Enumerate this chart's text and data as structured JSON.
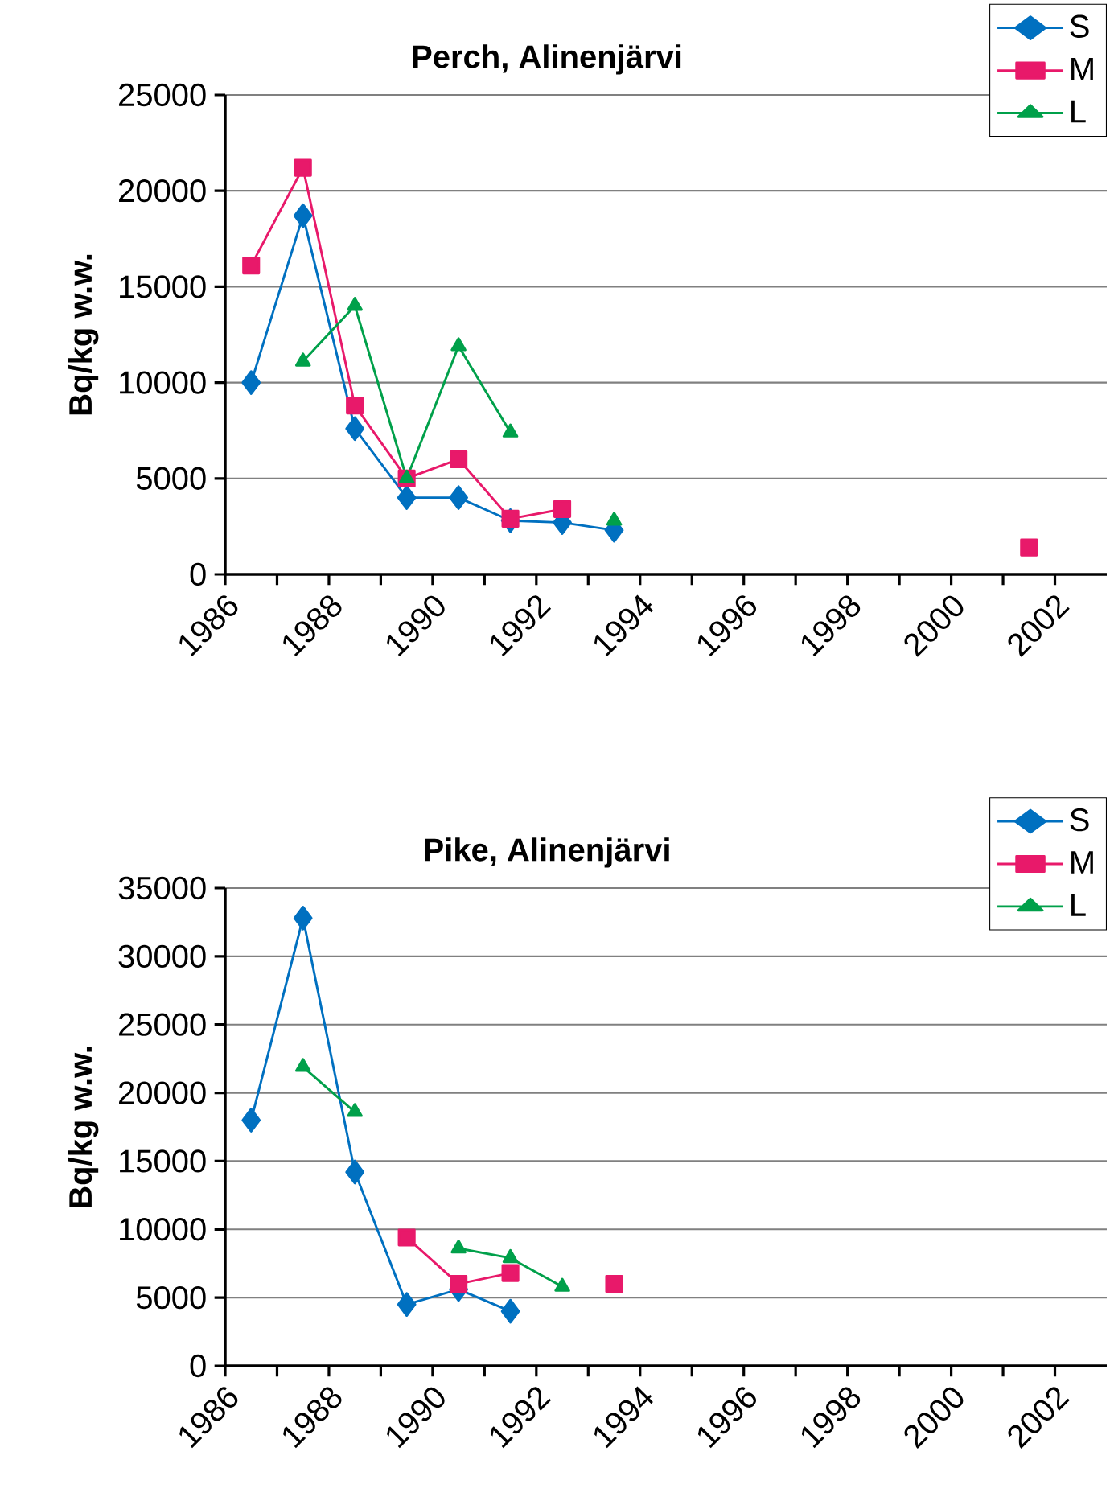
{
  "chart_data": [
    {
      "type": "line",
      "title": "Perch, Alinenjärvi",
      "ylabel": "Bq/kg w.w.",
      "x": [
        1986.5,
        1987.5,
        1988.5,
        1989.5,
        1990.5,
        1991.5,
        1992.5,
        1993.5,
        2001.5
      ],
      "series": [
        {
          "name": "S",
          "color": "#0070c0",
          "marker": "diamond",
          "values": [
            10000,
            18700,
            7600,
            4000,
            4000,
            2800,
            2700,
            2300,
            null
          ]
        },
        {
          "name": "M",
          "color": "#e8196a",
          "marker": "square",
          "values": [
            16100,
            21200,
            8800,
            5000,
            6000,
            2900,
            3400,
            null,
            1400
          ]
        },
        {
          "name": "L",
          "color": "#00a04a",
          "marker": "triangle",
          "values": [
            null,
            11100,
            14000,
            5000,
            11900,
            7400,
            null,
            2800,
            null
          ]
        }
      ],
      "xlim": [
        1986,
        2003
      ],
      "ylim": [
        0,
        25000
      ],
      "xticks": [
        1986,
        {
          "value": 1987,
          "label": null
        },
        1988,
        {
          "value": 1989,
          "label": null
        },
        1990,
        {
          "value": 1991,
          "label": null
        },
        1992,
        {
          "value": 1993,
          "label": null
        },
        1994,
        {
          "value": 1995,
          "label": null
        },
        1996,
        {
          "value": 1997,
          "label": null
        },
        1998,
        {
          "value": 1999,
          "label": null
        },
        2000,
        {
          "value": 2001,
          "label": null
        },
        2002
      ],
      "yticks": [
        0,
        5000,
        10000,
        15000,
        20000,
        25000
      ],
      "grid": "y",
      "legend": "top right",
      "line_style": "solid"
    },
    {
      "type": "line",
      "title": "Pike, Alinenjärvi",
      "ylabel": "Bq/kg w.w.",
      "x": [
        1986.5,
        1987.5,
        1988.5,
        1989.5,
        1990.5,
        1991.5,
        1992.5,
        1993.5
      ],
      "series": [
        {
          "name": "S",
          "color": "#0070c0",
          "marker": "diamond",
          "values": [
            18000,
            32800,
            14200,
            4500,
            5600,
            4000,
            null,
            null
          ]
        },
        {
          "name": "M",
          "color": "#e8196a",
          "marker": "square",
          "values": [
            null,
            null,
            null,
            9400,
            6000,
            6800,
            null,
            6000
          ]
        },
        {
          "name": "L",
          "color": "#00a04a",
          "marker": "triangle",
          "values": [
            null,
            21900,
            18600,
            null,
            8600,
            7900,
            5800,
            null
          ]
        }
      ],
      "xlim": [
        1986,
        2003
      ],
      "ylim": [
        0,
        35000
      ],
      "xticks": [
        1986,
        {
          "value": 1987,
          "label": null
        },
        1988,
        {
          "value": 1989,
          "label": null
        },
        1990,
        {
          "value": 1991,
          "label": null
        },
        1992,
        {
          "value": 1993,
          "label": null
        },
        1994,
        {
          "value": 1995,
          "label": null
        },
        1996,
        {
          "value": 1997,
          "label": null
        },
        1998,
        {
          "value": 1999,
          "label": null
        },
        2000,
        {
          "value": 2001,
          "label": null
        },
        2002
      ],
      "yticks": [
        0,
        5000,
        10000,
        15000,
        20000,
        25000,
        30000,
        35000
      ],
      "grid": "y",
      "legend": "top right",
      "line_style": "solid"
    }
  ]
}
